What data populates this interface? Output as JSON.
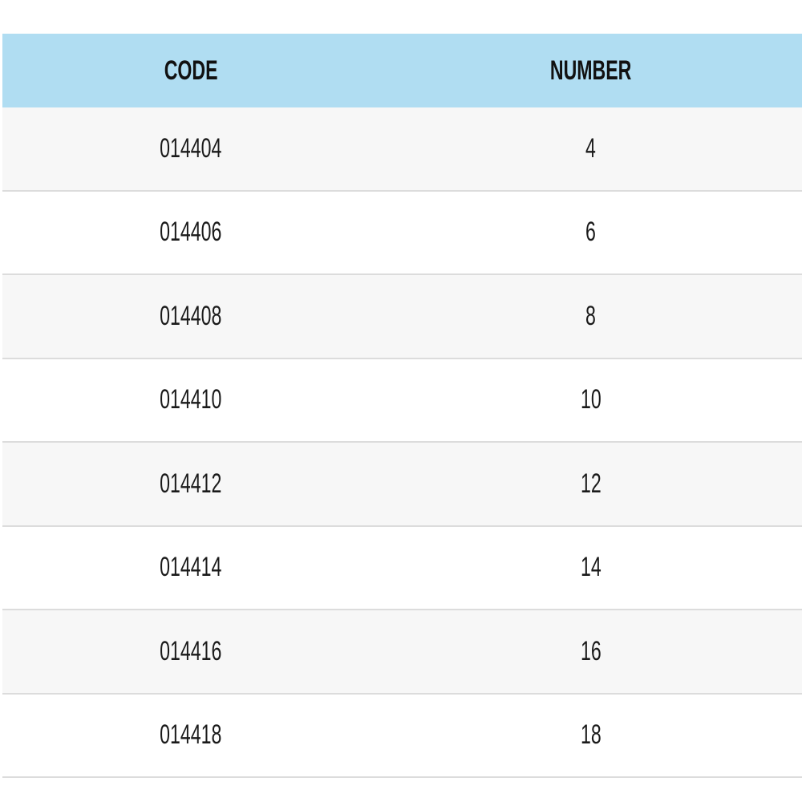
{
  "table": {
    "headers": [
      "CODE",
      "NUMBER"
    ],
    "rows": [
      [
        "014404",
        "4"
      ],
      [
        "014406",
        "6"
      ],
      [
        "014408",
        "8"
      ],
      [
        "014410",
        "10"
      ],
      [
        "014412",
        "12"
      ],
      [
        "014414",
        "14"
      ],
      [
        "014416",
        "16"
      ],
      [
        "014418",
        "18"
      ]
    ],
    "header_color": "#b0ddf2"
  }
}
